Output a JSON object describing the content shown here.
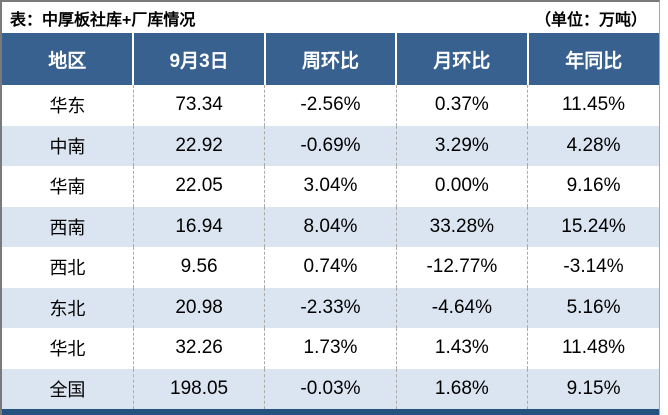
{
  "title": {
    "left": "表：中厚板社库+厂库情况",
    "right": "（单位：万吨）"
  },
  "colors": {
    "header_bg": "#38618F",
    "row_alt_bg": "#DBE5F1",
    "up_red": "#C00000",
    "down_green": "#538135",
    "neutral": "#000000",
    "bottom_bar": "#26527F",
    "border_gray": "#7A7A7A"
  },
  "chart_data": {
    "type": "table",
    "title": "表：中厚板社库+厂库情况",
    "unit_label": "（单位：万吨）",
    "columns": [
      "地区",
      "9月3日",
      "周环比",
      "月环比",
      "年同比"
    ],
    "rows": [
      {
        "region": "华东",
        "value": "73.34",
        "wow": {
          "text": "-2.56%",
          "trend": "down"
        },
        "mom": {
          "text": "0.37%",
          "trend": "up"
        },
        "yoy": {
          "text": "11.45%",
          "trend": "up"
        }
      },
      {
        "region": "中南",
        "value": "22.92",
        "wow": {
          "text": "-0.69%",
          "trend": "down"
        },
        "mom": {
          "text": "3.29%",
          "trend": "up"
        },
        "yoy": {
          "text": "4.28%",
          "trend": "up"
        }
      },
      {
        "region": "华南",
        "value": "22.05",
        "wow": {
          "text": "3.04%",
          "trend": "up"
        },
        "mom": {
          "text": "0.00%",
          "trend": "flat"
        },
        "yoy": {
          "text": "9.16%",
          "trend": "up"
        }
      },
      {
        "region": "西南",
        "value": "16.94",
        "wow": {
          "text": "8.04%",
          "trend": "up"
        },
        "mom": {
          "text": "33.28%",
          "trend": "up"
        },
        "yoy": {
          "text": "15.24%",
          "trend": "up"
        }
      },
      {
        "region": "西北",
        "value": "9.56",
        "wow": {
          "text": "0.74%",
          "trend": "up"
        },
        "mom": {
          "text": "-12.77%",
          "trend": "down"
        },
        "yoy": {
          "text": "-3.14%",
          "trend": "down"
        }
      },
      {
        "region": "东北",
        "value": "20.98",
        "wow": {
          "text": "-2.33%",
          "trend": "down"
        },
        "mom": {
          "text": "-4.64%",
          "trend": "down"
        },
        "yoy": {
          "text": "5.16%",
          "trend": "up"
        }
      },
      {
        "region": "华北",
        "value": "32.26",
        "wow": {
          "text": "1.73%",
          "trend": "up"
        },
        "mom": {
          "text": "1.43%",
          "trend": "up"
        },
        "yoy": {
          "text": "11.48%",
          "trend": "up"
        }
      },
      {
        "region": "全国",
        "value": "198.05",
        "wow": {
          "text": "-0.03%",
          "trend": "down"
        },
        "mom": {
          "text": "1.68%",
          "trend": "up"
        },
        "yoy": {
          "text": "9.15%",
          "trend": "up"
        }
      }
    ]
  }
}
